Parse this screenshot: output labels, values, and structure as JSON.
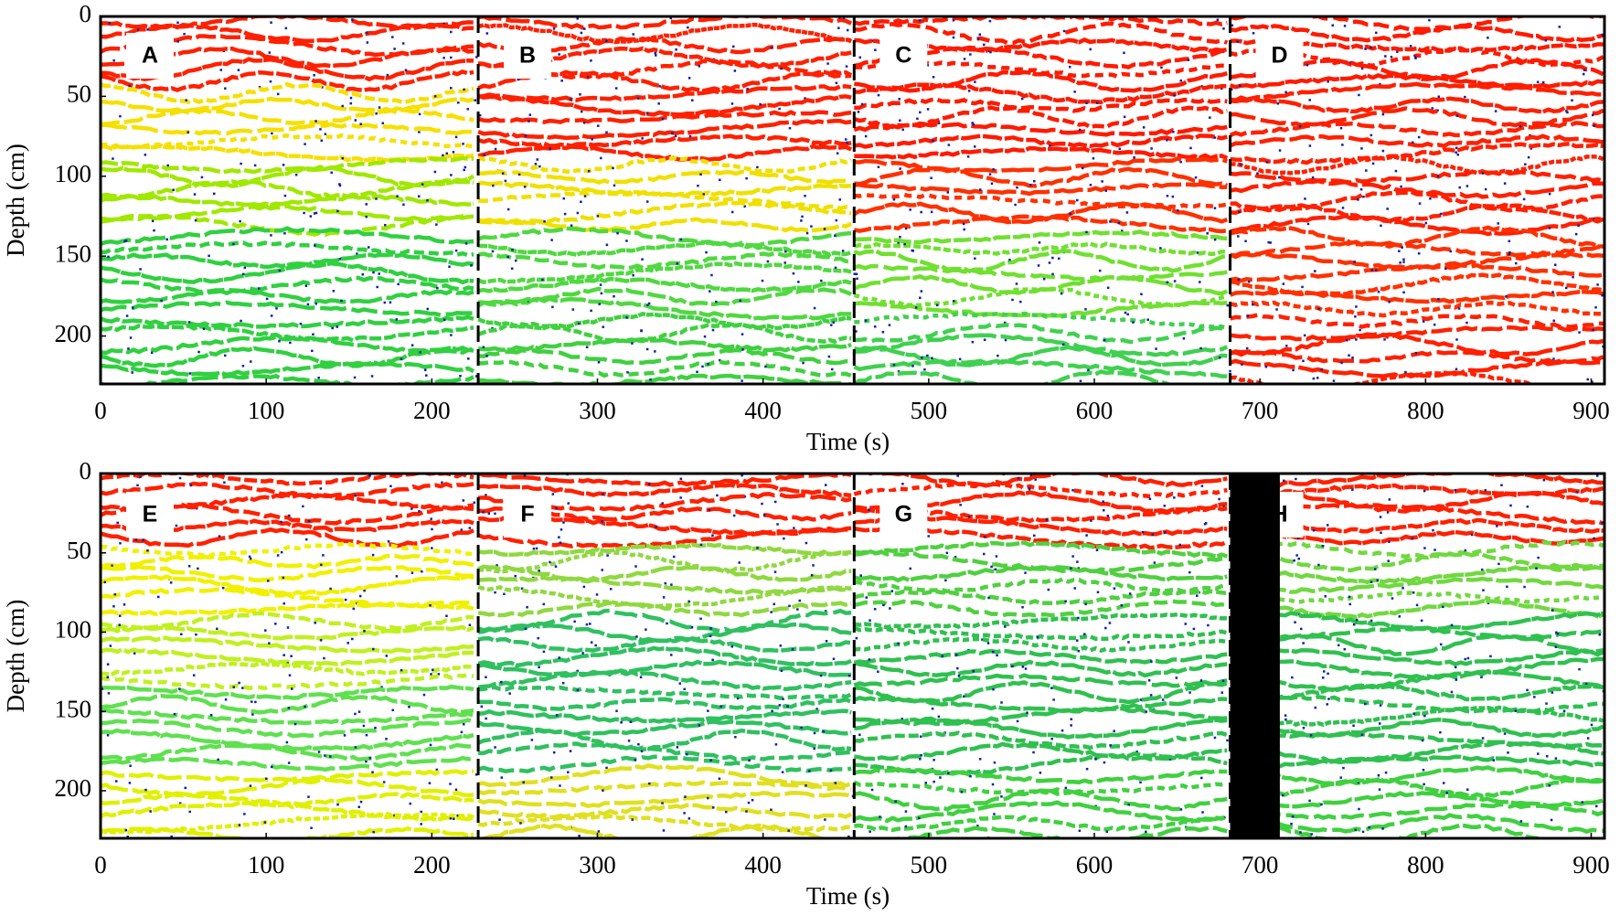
{
  "chart_data": [
    {
      "type": "heatmap",
      "xlabel": "Time (s)",
      "ylabel": "Depth (cm)",
      "xlim": [
        0,
        908
      ],
      "xticks": [
        0,
        100,
        200,
        300,
        400,
        500,
        600,
        700,
        800,
        900
      ],
      "ylim": [
        0,
        230
      ],
      "yticks": [
        0,
        50,
        100,
        150,
        200
      ],
      "y_inverted": true,
      "dividers": [
        228,
        455,
        682
      ],
      "panels": [
        {
          "label": "A",
          "palette": [
            "#ff2000",
            "#f5e000",
            "#a0e800",
            "#30d040",
            "#30d040"
          ]
        },
        {
          "label": "B",
          "palette": [
            "#ff2000",
            "#ff2000",
            "#f0e000",
            "#50d840",
            "#40d040"
          ]
        },
        {
          "label": "C",
          "palette": [
            "#ff1a00",
            "#ff1a00",
            "#ff3000",
            "#70e030",
            "#40d050"
          ]
        },
        {
          "label": "D",
          "palette": [
            "#ff1a00",
            "#ff2000",
            "#ff2000",
            "#ff3000",
            "#ff2000"
          ]
        }
      ]
    },
    {
      "type": "heatmap",
      "xlabel": "Time (s)",
      "ylabel": "Depth (cm)",
      "xlim": [
        0,
        908
      ],
      "xticks": [
        0,
        100,
        200,
        300,
        400,
        500,
        600,
        700,
        800,
        900
      ],
      "ylim": [
        0,
        230
      ],
      "yticks": [
        0,
        50,
        100,
        150,
        200
      ],
      "y_inverted": true,
      "dividers": [
        228,
        455,
        682
      ],
      "mask": [
        682,
        712
      ],
      "panels": [
        {
          "label": "E",
          "palette": [
            "#ff2000",
            "#f0f000",
            "#c0f020",
            "#60e050",
            "#e0f000"
          ]
        },
        {
          "label": "F",
          "palette": [
            "#ff2000",
            "#90d840",
            "#30c060",
            "#30c060",
            "#e0e020"
          ]
        },
        {
          "label": "G",
          "palette": [
            "#ff2000",
            "#50d040",
            "#30c050",
            "#30c050",
            "#40d040"
          ]
        },
        {
          "label": "H",
          "palette": [
            "#ff2000",
            "#70d840",
            "#30c050",
            "#30c050",
            "#40d040"
          ]
        }
      ]
    }
  ]
}
